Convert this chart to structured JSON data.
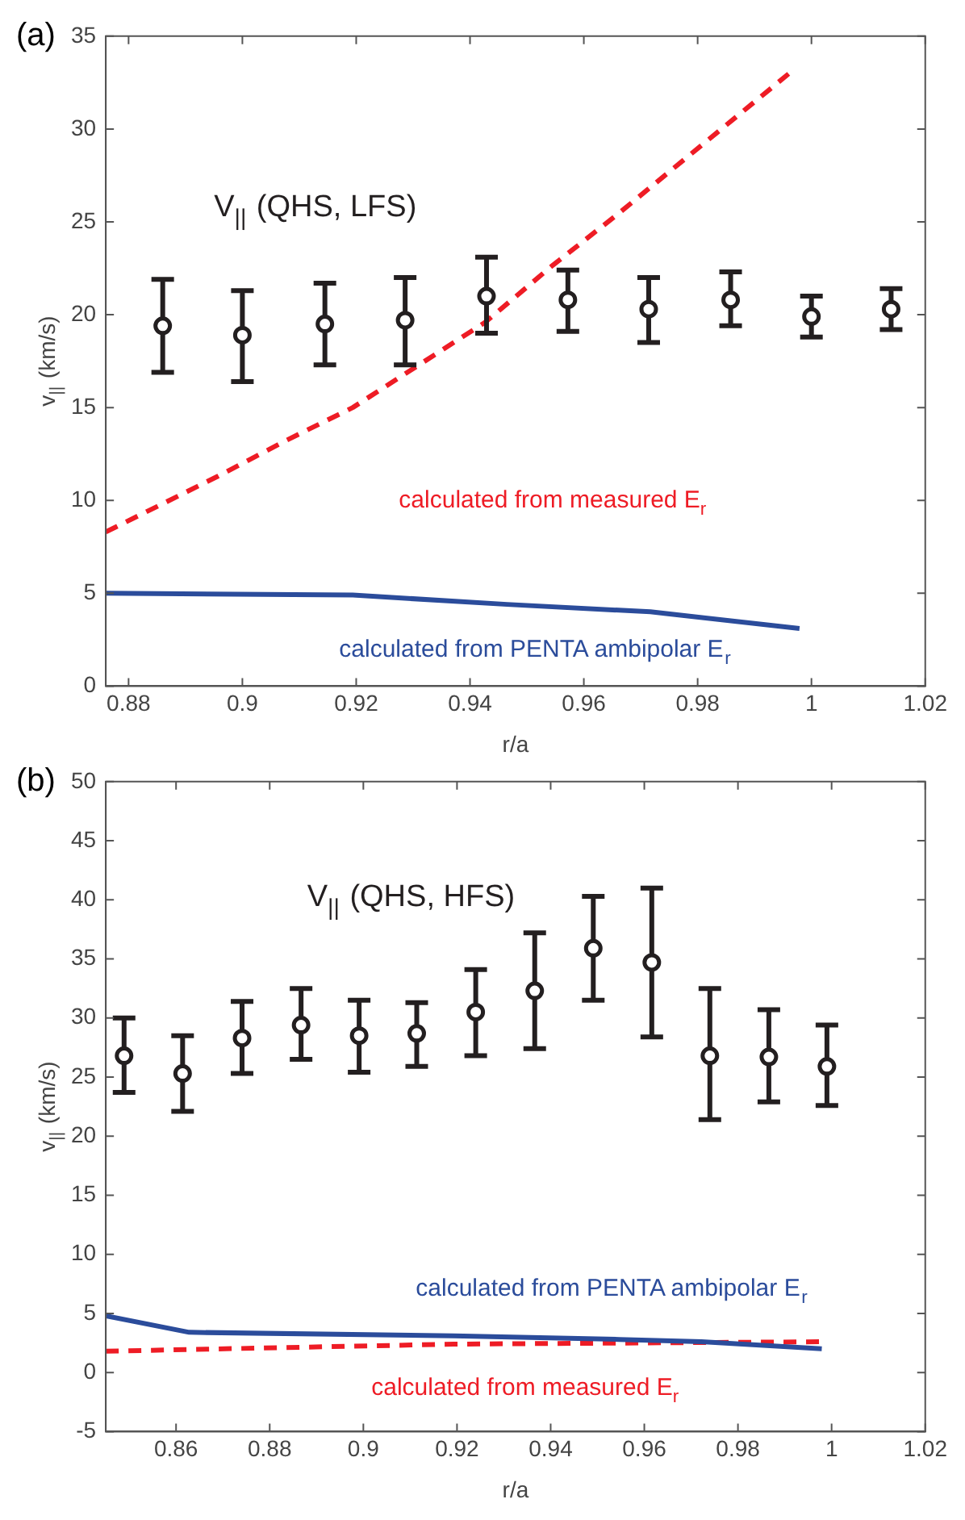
{
  "chart_data": [
    {
      "type": "scatter",
      "title": "(a)",
      "xlabel": "r/a",
      "ylabel": "v$_{||}$ (km/s)",
      "xlim": [
        0.876,
        1.02
      ],
      "xticks": [
        0.88,
        0.9,
        0.92,
        0.94,
        0.96,
        0.98,
        1,
        1.02
      ],
      "ylim": [
        0,
        35
      ],
      "yticks": [
        0,
        5,
        10,
        15,
        20,
        25,
        30,
        35
      ],
      "grid": false,
      "legend": false,
      "marker": "circle",
      "series": [
        {
          "type": "scatter",
          "name": "V$_{||}$ (QHS, LFS)",
          "color": "#231f20",
          "x": [
            0.886,
            0.9,
            0.9145,
            0.9286,
            0.9429,
            0.9572,
            0.9714,
            0.9858,
            1.0,
            1.014
          ],
          "values": [
            19.4,
            18.9,
            19.5,
            19.7,
            21.0,
            20.8,
            20.3,
            20.8,
            19.9,
            20.3
          ],
          "errors": [
            [
              16.9,
              21.9
            ],
            [
              16.4,
              21.3
            ],
            [
              17.3,
              21.7
            ],
            [
              17.3,
              22.0
            ],
            [
              19.0,
              23.1
            ],
            [
              19.1,
              22.4
            ],
            [
              18.5,
              22.0
            ],
            [
              19.4,
              22.3
            ],
            [
              18.8,
              21.0
            ],
            [
              19.2,
              21.4
            ]
          ]
        },
        {
          "type": "line",
          "name": "calculated from measured E$_{r}$",
          "color": "#ee1c25",
          "line_style": "dashed",
          "marker": "none",
          "x": [
            0.876,
            0.8957,
            0.9075,
            0.9194,
            0.9427,
            0.9543,
            0.9659,
            0.9969
          ],
          "values": [
            8.3,
            11.3,
            13.2,
            15.0,
            19.6,
            22.6,
            25.4,
            33.2
          ]
        },
        {
          "type": "line",
          "name": "calculated from PENTA ambipolar E$_{r}$",
          "color": "#2b4c9b",
          "line_style": "solid",
          "marker": "none",
          "x": [
            0.876,
            0.9194,
            0.9465,
            0.9717,
            0.9979
          ],
          "values": [
            5.0,
            4.9,
            4.4,
            4.0,
            3.1
          ]
        }
      ]
    },
    {
      "type": "scatter",
      "title": "(b)",
      "xlabel": "r/a",
      "ylabel": "v$_{||}$ (km/s)",
      "xlim": [
        0.845,
        1.02
      ],
      "xticks": [
        0.86,
        0.88,
        0.9,
        0.92,
        0.94,
        0.96,
        0.98,
        1,
        1.02
      ],
      "ylim": [
        -5,
        50
      ],
      "yticks": [
        -5,
        0,
        5,
        10,
        15,
        20,
        25,
        30,
        35,
        40,
        45,
        50
      ],
      "grid": false,
      "legend": false,
      "marker": "circle",
      "series": [
        {
          "type": "scatter",
          "name": "V$_{||}$ (QHS, HFS)",
          "color": "#231f20",
          "x": [
            0.8489,
            0.8614,
            0.8741,
            0.8867,
            0.8991,
            0.9114,
            0.924,
            0.9366,
            0.9491,
            0.9616,
            0.974,
            0.9866,
            0.999
          ],
          "values": [
            26.8,
            25.3,
            28.3,
            29.4,
            28.5,
            28.7,
            30.5,
            32.3,
            35.9,
            34.7,
            26.8,
            26.7,
            25.9
          ],
          "errors": [
            [
              23.7,
              30.0
            ],
            [
              22.1,
              28.5
            ],
            [
              25.3,
              31.4
            ],
            [
              26.5,
              32.5
            ],
            [
              25.4,
              31.5
            ],
            [
              25.9,
              31.3
            ],
            [
              26.8,
              34.1
            ],
            [
              27.4,
              37.2
            ],
            [
              31.5,
              40.3
            ],
            [
              28.4,
              41.0
            ],
            [
              21.4,
              32.5
            ],
            [
              22.9,
              30.7
            ],
            [
              22.6,
              29.4
            ]
          ]
        },
        {
          "type": "line",
          "name": "calculated from PENTA ambipolar E$_{r}$",
          "color": "#2b4c9b",
          "line_style": "solid",
          "marker": "none",
          "x": [
            0.845,
            0.8628,
            0.9193,
            0.9546,
            0.9722,
            0.9979
          ],
          "values": [
            4.8,
            3.4,
            3.1,
            2.8,
            2.6,
            2.0
          ]
        },
        {
          "type": "line",
          "name": "calculated from measured E$_{r}$",
          "color": "#ee1c25",
          "line_style": "dashed",
          "marker": "none",
          "x": [
            0.845,
            0.9193,
            0.9979
          ],
          "values": [
            1.8,
            2.4,
            2.6
          ]
        }
      ]
    }
  ]
}
